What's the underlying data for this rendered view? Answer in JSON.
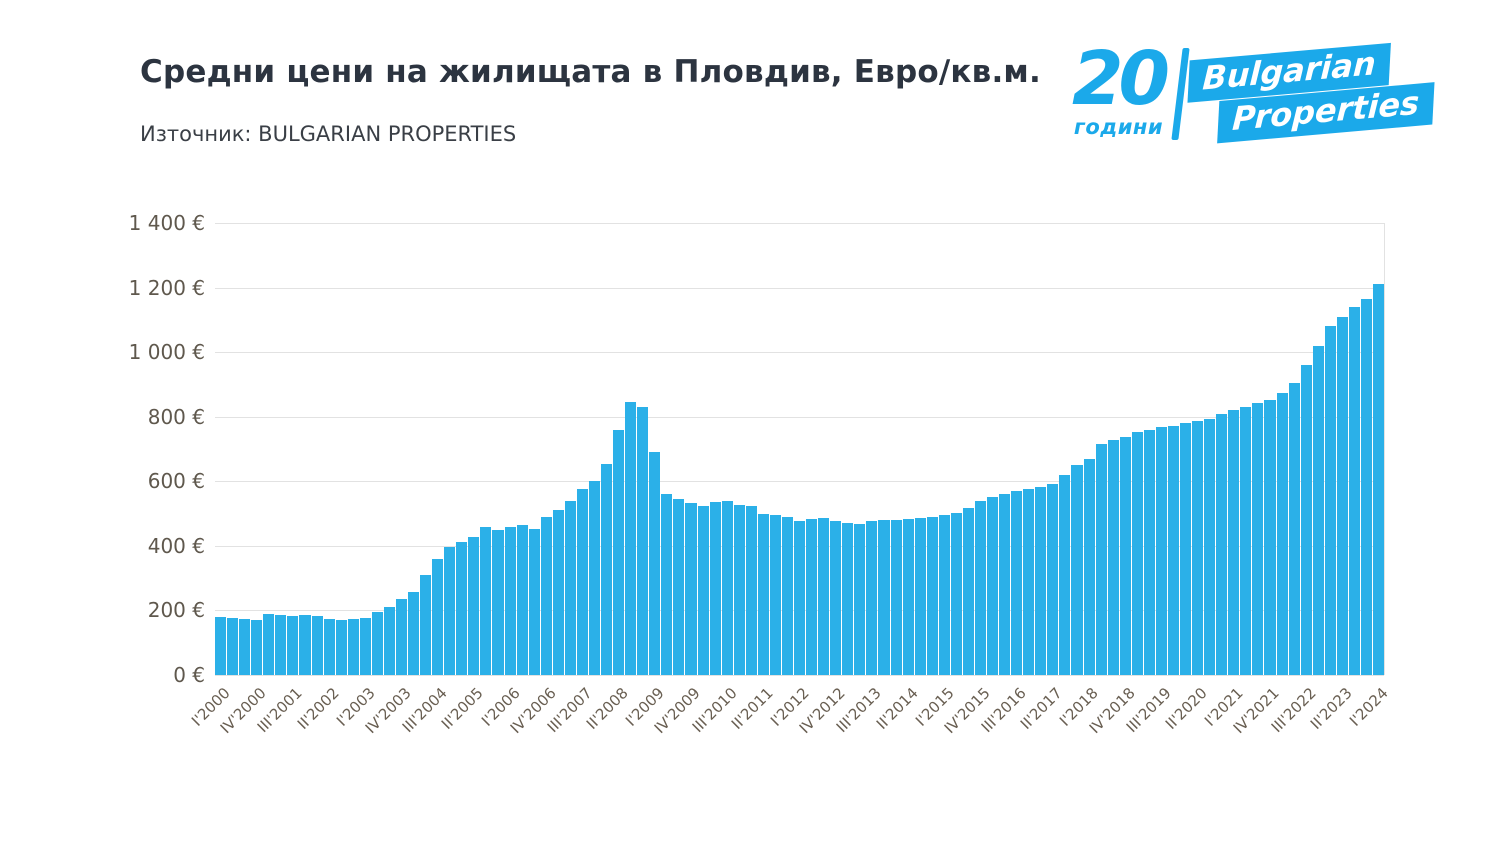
{
  "chart_data": {
    "type": "bar",
    "title": "Средни цени на жилищата в Пловдив, Евро/кв.м.",
    "source": "Източник: BULGARIAN PROPERTIES",
    "ylim": [
      0,
      1400
    ],
    "ytick_interval": 200,
    "ytick_labels": [
      "0 €",
      "200 €",
      "400 €",
      "600 €",
      "800 €",
      "1 000 €",
      "1 200 €",
      "1 400 €"
    ],
    "grid": true,
    "legend_position": "none",
    "bar_color": "#2bb0e8",
    "tick_every": 3,
    "tick_labels": [
      "I'2000",
      "IV'2000",
      "III'2001",
      "II'2002",
      "I'2003",
      "IV'2003",
      "III'2004",
      "II'2005",
      "I'2006",
      "IV'2006",
      "III'2007",
      "II'2008",
      "I'2009",
      "IV'2009",
      "III'2010",
      "II'2011",
      "I'2012",
      "IV'2012",
      "III'2013",
      "II'2014",
      "I'2015",
      "IV'2015",
      "III'2016",
      "II'2017",
      "I'2018",
      "IV'2018",
      "III'2019",
      "II'2020",
      "I'2021",
      "IV'2021",
      "III'2022",
      "II'2023",
      "I'2024"
    ],
    "values": [
      180,
      178,
      172,
      170,
      188,
      186,
      183,
      186,
      182,
      172,
      170,
      173,
      176,
      196,
      210,
      235,
      258,
      310,
      358,
      396,
      413,
      427,
      460,
      450,
      457,
      466,
      452,
      490,
      510,
      540,
      575,
      600,
      655,
      760,
      845,
      830,
      690,
      560,
      545,
      532,
      525,
      535,
      538,
      528,
      523,
      498,
      497,
      490,
      478,
      483,
      486,
      478,
      470,
      468,
      477,
      479,
      480,
      482,
      487,
      490,
      497,
      503,
      517,
      540,
      552,
      562,
      571,
      577,
      581,
      591,
      620,
      650,
      670,
      717,
      727,
      737,
      752,
      760,
      768,
      772,
      780,
      788,
      793,
      810,
      820,
      830,
      843,
      852,
      872,
      905,
      960,
      1020,
      1080,
      1110,
      1140,
      1165,
      1210
    ]
  },
  "logo": {
    "number": "20",
    "years": "години",
    "brand_line1": "Bulgarian",
    "brand_line2": "Properties",
    "color": "#1ba9ea"
  }
}
